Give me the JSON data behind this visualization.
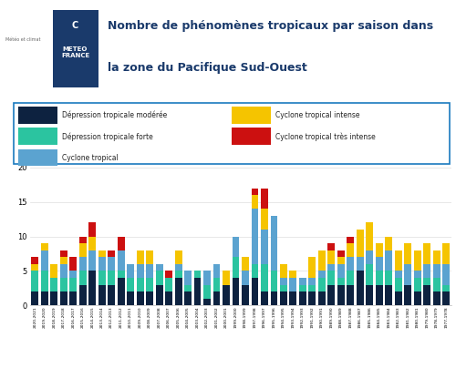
{
  "title_line1": "Nombre de phénomènes tropicaux par saison dans",
  "title_line2": "la zone du Pacifique Sud-Ouest",
  "categories": [
    "2020-2021",
    "2019-2020",
    "2018-2019",
    "2017-2018",
    "2016-2017",
    "2015-2016",
    "2014-2015",
    "2013-2014",
    "2012-2013",
    "2011-2012",
    "2010-2011",
    "2009-2010",
    "2008-2009",
    "2007-2008",
    "2006-2007",
    "2005-2006",
    "2004-2005",
    "2003-2004",
    "2002-2003",
    "2001-2002",
    "2000-2001",
    "1999-2000",
    "1998-1999",
    "1997-1998",
    "1996-1997",
    "1995-1996",
    "1994-1995",
    "1993-1994",
    "1992-1993",
    "1991-1992",
    "1990-1991",
    "1989-1990",
    "1988-1989",
    "1987-1988",
    "1986-1987",
    "1985-1986",
    "1984-1985",
    "1983-1984",
    "1982-1983",
    "1981-1982",
    "1980-1981",
    "1979-1980",
    "1978-1979",
    "1977-1978"
  ],
  "depression_moderee": [
    2,
    2,
    2,
    2,
    2,
    3,
    5,
    3,
    3,
    4,
    2,
    2,
    2,
    3,
    2,
    4,
    2,
    4,
    1,
    2,
    3,
    4,
    3,
    4,
    2,
    2,
    2,
    2,
    2,
    2,
    2,
    3,
    3,
    3,
    5,
    3,
    3,
    3,
    2,
    3,
    2,
    3,
    2,
    2
  ],
  "depression_forte": [
    3,
    3,
    2,
    2,
    2,
    2,
    0,
    2,
    2,
    1,
    2,
    2,
    2,
    2,
    2,
    1,
    1,
    1,
    2,
    2,
    0,
    3,
    0,
    2,
    4,
    3,
    1,
    0,
    1,
    1,
    2,
    2,
    1,
    2,
    0,
    3,
    2,
    2,
    2,
    0,
    2,
    1,
    2,
    1
  ],
  "cyclone_tropical": [
    0,
    3,
    0,
    2,
    1,
    2,
    3,
    2,
    2,
    3,
    2,
    2,
    2,
    1,
    0,
    1,
    2,
    0,
    2,
    2,
    0,
    3,
    2,
    8,
    5,
    8,
    1,
    2,
    1,
    1,
    1,
    1,
    2,
    2,
    2,
    2,
    2,
    3,
    1,
    3,
    1,
    2,
    2,
    3
  ],
  "cyclone_intense": [
    1,
    1,
    2,
    1,
    0,
    2,
    2,
    1,
    0,
    0,
    0,
    2,
    2,
    0,
    0,
    2,
    0,
    0,
    0,
    0,
    2,
    0,
    2,
    2,
    3,
    0,
    2,
    1,
    0,
    3,
    3,
    2,
    1,
    2,
    4,
    4,
    2,
    2,
    3,
    3,
    3,
    3,
    2,
    3
  ],
  "cyclone_tres_intense": [
    1,
    0,
    0,
    1,
    2,
    1,
    2,
    0,
    1,
    2,
    0,
    0,
    0,
    0,
    1,
    0,
    0,
    0,
    0,
    0,
    0,
    0,
    0,
    1,
    3,
    0,
    0,
    0,
    0,
    0,
    0,
    1,
    1,
    1,
    0,
    0,
    0,
    0,
    0,
    0,
    0,
    0,
    0,
    0
  ],
  "colors": {
    "depression_moderee": "#0d2240",
    "depression_forte": "#2bc4a0",
    "cyclone_tropical": "#5ba3d0",
    "cyclone_intense": "#f5c400",
    "cyclone_tres_intense": "#cc1010"
  },
  "legend_labels": {
    "depression_moderee": "Dépression tropicale modérée",
    "depression_forte": "Dépression tropicale forte",
    "cyclone_tropical": "Cyclone tropical",
    "cyclone_intense": "Cyclone tropical intense",
    "cyclone_tres_intense": "Cyclone tropical très intense"
  },
  "ylim": [
    0,
    20
  ],
  "yticks": [
    0,
    5,
    10,
    15,
    20
  ],
  "bar_width": 0.75,
  "logo_color": "#1a3a6b",
  "title_color": "#1a3a6b",
  "legend_border_color": "#1a7abf",
  "grid_color": "#dddddd",
  "background_color": "#ffffff"
}
